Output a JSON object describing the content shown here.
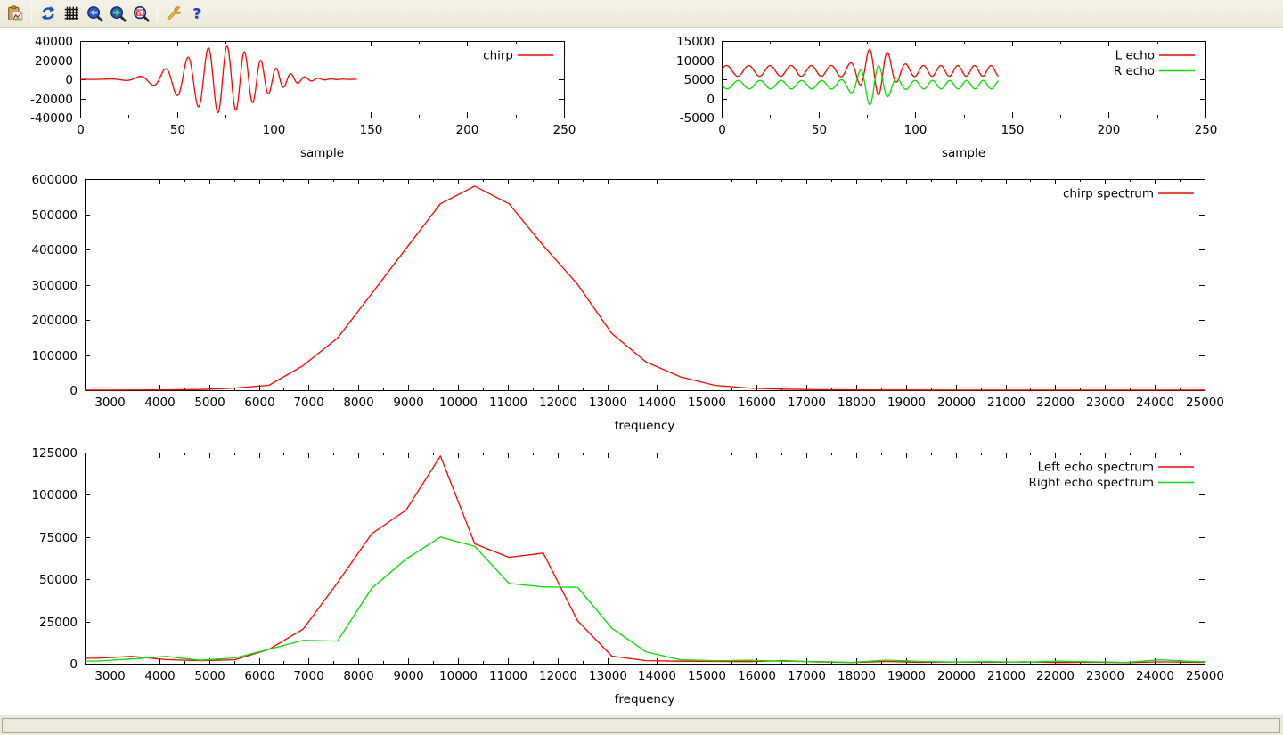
{
  "window": {
    "app": "gnuplot graph window",
    "toolbar": {
      "buttons": [
        {
          "id": "copy",
          "icon": "clipboard-chart-icon",
          "action": "copy plot to clipboard"
        },
        {
          "id": "replot",
          "icon": "refresh-icon",
          "action": "replot"
        },
        {
          "id": "grid",
          "icon": "grid-icon",
          "action": "toggle grid"
        },
        {
          "id": "zoom-previous",
          "icon": "magnifier-back-icon",
          "action": "previous zoom"
        },
        {
          "id": "zoom-next",
          "icon": "magnifier-forward-icon",
          "action": "next zoom"
        },
        {
          "id": "autoscale",
          "icon": "magnifier-plot-icon",
          "action": "apply autoscale"
        },
        {
          "id": "configure",
          "icon": "wrench-icon",
          "action": "configure terminal"
        },
        {
          "id": "help",
          "icon": "question-mark-icon",
          "action": "help"
        }
      ]
    }
  },
  "status_bar": {
    "text": ""
  },
  "colors": {
    "series_red": "#ff0000",
    "series_green": "#00df00",
    "axis": "#000000",
    "plot_background": "#ffffff",
    "chrome_background": "#ece9d8"
  },
  "chart_data": [
    {
      "id": "chirp-waveform",
      "type": "line",
      "xlabel": "sample",
      "ylabel": "",
      "xlim": [
        0,
        250
      ],
      "ylim": [
        -40000,
        40000
      ],
      "xticks": [
        0,
        50,
        100,
        150,
        200,
        250
      ],
      "yticks": [
        -40000,
        -20000,
        0,
        20000,
        40000
      ],
      "x_minor_interval": 25,
      "grid": false,
      "legend_position": "top-right",
      "legend": [
        {
          "label": "chirp",
          "color": "#ff0000"
        }
      ],
      "series": [
        {
          "name": "chirp",
          "color": "#ff0000",
          "signal_model": {
            "kind": "gaussian_chirp",
            "amplitude": 35000,
            "center": 73,
            "sigma": 19,
            "f0": 0.052,
            "df": 0.00042,
            "t0": 10,
            "range": [
              0,
              143
            ]
          }
        }
      ]
    },
    {
      "id": "echo-waveforms",
      "type": "line",
      "xlabel": "sample",
      "ylabel": "",
      "xlim": [
        0,
        250
      ],
      "ylim": [
        -5000,
        15000
      ],
      "xticks": [
        0,
        50,
        100,
        150,
        200,
        250
      ],
      "yticks": [
        -5000,
        0,
        5000,
        10000,
        15000
      ],
      "x_minor_interval": 25,
      "grid": false,
      "legend_position": "top-right",
      "legend": [
        {
          "label": "L echo",
          "color": "#ff0000"
        },
        {
          "label": "R echo",
          "color": "#00df00"
        }
      ],
      "series": [
        {
          "name": "L echo",
          "color": "#ff0000",
          "signal_model": {
            "kind": "am_chirp_burst",
            "offset": 7200,
            "base_amplitude": 1400,
            "burst_amplitude": 4900,
            "center": 80,
            "sigma": 6.8,
            "f0": 0.0855,
            "df": 0.00012,
            "phase": 0.2,
            "range": [
              0,
              143
            ]
          }
        },
        {
          "name": "R echo",
          "color": "#00df00",
          "signal_model": {
            "kind": "am_chirp_burst",
            "offset": 3600,
            "base_amplitude": 1100,
            "burst_amplitude": 4300,
            "center": 78,
            "sigma": 6.5,
            "f0": 0.0855,
            "df": 0.00012,
            "phase": 3.2,
            "range": [
              0,
              143
            ]
          }
        }
      ]
    },
    {
      "id": "chirp-spectrum",
      "type": "line",
      "xlabel": "frequency",
      "ylabel": "",
      "xlim": [
        2500,
        25000
      ],
      "ylim": [
        0,
        600000
      ],
      "xticks": [
        3000,
        4000,
        5000,
        6000,
        7000,
        8000,
        9000,
        10000,
        11000,
        12000,
        13000,
        14000,
        15000,
        16000,
        17000,
        18000,
        19000,
        20000,
        21000,
        22000,
        23000,
        24000,
        25000
      ],
      "yticks": [
        0,
        100000,
        200000,
        300000,
        400000,
        500000,
        600000
      ],
      "x_minor_interval": 500,
      "grid": false,
      "extend_to_xlim": true,
      "legend_position": "top-right",
      "legend": [
        {
          "label": "chirp spectrum",
          "color": "#ff0000"
        }
      ],
      "x_values": [
        2756,
        3445,
        4134,
        4823,
        5513,
        6202,
        6891,
        7580,
        8269,
        8958,
        9647,
        10336,
        11025,
        11714,
        12403,
        13092,
        13781,
        14470,
        15159,
        15848,
        16538,
        17227,
        17916,
        18605,
        19294,
        19983,
        20672,
        21361,
        22050,
        22739,
        23428,
        24117,
        24806
      ],
      "series": [
        {
          "name": "chirp spectrum",
          "color": "#ff0000",
          "values": [
            300,
            500,
            800,
            2000,
            6000,
            14000,
            70000,
            148000,
            275000,
            403000,
            530000,
            580000,
            530000,
            411000,
            301000,
            161000,
            80000,
            38000,
            14000,
            6000,
            3000,
            1500,
            800,
            500,
            400,
            350,
            300,
            300,
            250,
            250,
            200,
            200,
            200
          ]
        }
      ]
    },
    {
      "id": "echo-spectra",
      "type": "line",
      "xlabel": "frequency",
      "ylabel": "",
      "xlim": [
        2500,
        25000
      ],
      "ylim": [
        0,
        125000
      ],
      "xticks": [
        3000,
        4000,
        5000,
        6000,
        7000,
        8000,
        9000,
        10000,
        11000,
        12000,
        13000,
        14000,
        15000,
        16000,
        17000,
        18000,
        19000,
        20000,
        21000,
        22000,
        23000,
        24000,
        25000
      ],
      "yticks": [
        0,
        25000,
        50000,
        75000,
        100000,
        125000
      ],
      "x_minor_interval": 500,
      "grid": false,
      "extend_to_xlim": true,
      "legend_position": "top-right",
      "legend": [
        {
          "label": "Left echo spectrum",
          "color": "#ff0000"
        },
        {
          "label": "Right echo spectrum",
          "color": "#00df00"
        }
      ],
      "x_values": [
        2756,
        3445,
        4134,
        4823,
        5513,
        6202,
        6891,
        7580,
        8269,
        8958,
        9647,
        10336,
        11025,
        11714,
        12403,
        13092,
        13781,
        14470,
        15159,
        15848,
        16538,
        17227,
        17916,
        18605,
        19294,
        19983,
        20672,
        21361,
        22050,
        22739,
        23428,
        24117,
        24806
      ],
      "series": [
        {
          "name": "Left echo spectrum",
          "color": "#ff0000",
          "values": [
            3200,
            4300,
            2400,
            1800,
            2300,
            8500,
            20500,
            48000,
            77000,
            91000,
            123000,
            71000,
            63000,
            65500,
            25500,
            4500,
            1800,
            1500,
            1300,
            1200,
            1800,
            1000,
            700,
            1300,
            800,
            1000,
            800,
            1100,
            700,
            900,
            600,
            1100,
            800
          ]
        },
        {
          "name": "Right echo spectrum",
          "color": "#00df00",
          "values": [
            1600,
            2800,
            4300,
            2000,
            3400,
            8500,
            13800,
            13400,
            44800,
            62000,
            75000,
            69500,
            47500,
            45500,
            45300,
            21000,
            7000,
            2300,
            1800,
            2000,
            1400,
            1200,
            800,
            2100,
            1300,
            1000,
            1200,
            900,
            1500,
            1100,
            800,
            2300,
            1200
          ]
        }
      ]
    }
  ]
}
